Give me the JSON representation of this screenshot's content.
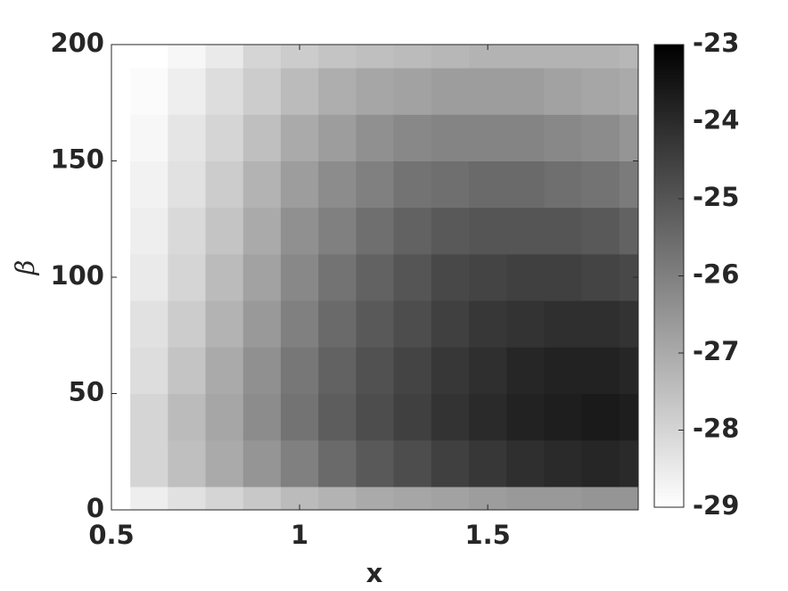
{
  "chart_data": {
    "type": "contour",
    "xlabel": "x",
    "ylabel": "β",
    "x": [
      0.5,
      0.6,
      0.7,
      0.8,
      0.9,
      1.0,
      1.1,
      1.2,
      1.3,
      1.4,
      1.5,
      1.6,
      1.7,
      1.8,
      1.9
    ],
    "y": [
      0,
      20,
      40,
      60,
      80,
      100,
      120,
      140,
      160,
      180,
      200
    ],
    "z": [
      [
        -29,
        -28.6,
        -28.3,
        -28,
        -27.7,
        -27.4,
        -27.2,
        -27,
        -26.9,
        -26.8,
        -26.7,
        -26.6,
        -26.6,
        -26.5,
        -26.5
      ],
      [
        -29,
        -28,
        -27.5,
        -27,
        -26.5,
        -26,
        -25.5,
        -25.1,
        -24.8,
        -24.5,
        -24.3,
        -24.1,
        -24,
        -23.9,
        -24
      ],
      [
        -29,
        -28,
        -27.4,
        -26.9,
        -26.3,
        -25.7,
        -25.2,
        -24.8,
        -24.5,
        -24.2,
        -24,
        -23.8,
        -23.7,
        -23.6,
        -23.7
      ],
      [
        -29,
        -28.2,
        -27.6,
        -27,
        -26.4,
        -25.8,
        -25.3,
        -24.9,
        -24.6,
        -24.3,
        -24.1,
        -23.9,
        -23.8,
        -23.8,
        -23.9
      ],
      [
        -29,
        -28.3,
        -27.8,
        -27.2,
        -26.6,
        -26,
        -25.5,
        -25.1,
        -24.8,
        -24.5,
        -24.3,
        -24.2,
        -24.1,
        -24.1,
        -24.2
      ],
      [
        -29,
        -28.5,
        -28,
        -27.4,
        -26.8,
        -26.2,
        -25.7,
        -25.3,
        -25,
        -24.7,
        -24.6,
        -24.5,
        -24.5,
        -24.6,
        -24.7
      ],
      [
        -29,
        -28.6,
        -28.1,
        -27.6,
        -27,
        -26.4,
        -26,
        -25.6,
        -25.3,
        -25.1,
        -25,
        -25,
        -25,
        -25.1,
        -25.3
      ],
      [
        -29,
        -28.7,
        -28.3,
        -27.8,
        -27.2,
        -26.7,
        -26.3,
        -26,
        -25.7,
        -25.6,
        -25.5,
        -25.5,
        -25.6,
        -25.7,
        -25.9
      ],
      [
        -29,
        -28.8,
        -28.4,
        -28,
        -27.5,
        -27,
        -26.7,
        -26.4,
        -26.2,
        -26.1,
        -26.1,
        -26.1,
        -26.2,
        -26.3,
        -26.5
      ],
      [
        -29,
        -28.9,
        -28.6,
        -28.2,
        -27.8,
        -27.4,
        -27.1,
        -26.9,
        -26.8,
        -26.7,
        -26.7,
        -26.7,
        -26.8,
        -26.9,
        -27
      ],
      [
        -29,
        -29,
        -28.8,
        -28.5,
        -28,
        -27.8,
        -27.6,
        -27.5,
        -27.4,
        -27.3,
        -27.2,
        -27.2,
        -27.2,
        -27.2,
        -27.3
      ]
    ],
    "xlim": [
      0.5,
      1.9
    ],
    "xticks": [
      0.5,
      1,
      1.5
    ],
    "ylim": [
      0,
      200
    ],
    "yticks": [
      0,
      50,
      100,
      150,
      200
    ],
    "colorbar": {
      "lim": [
        -29,
        -23
      ],
      "ticks": [
        -29,
        -28,
        -27,
        -26,
        -25,
        -24,
        -23
      ]
    }
  }
}
